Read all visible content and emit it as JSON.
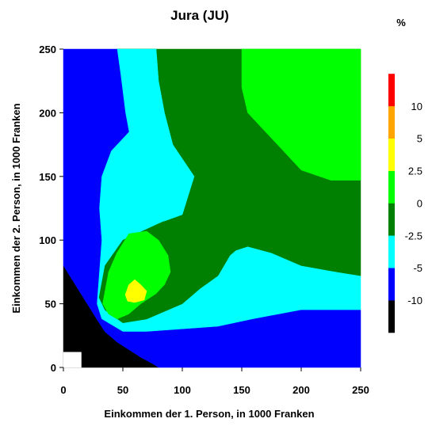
{
  "chart_data": {
    "type": "heatmap",
    "title": "Jura (JU)",
    "xlabel": "Einkommen der 1. Person, in 1000 Franken",
    "ylabel": "Einkommen der 2. Person, in 1000 Franken",
    "xlim": [
      0,
      250
    ],
    "ylim": [
      0,
      250
    ],
    "x_ticks": [
      0,
      50,
      100,
      150,
      200,
      250
    ],
    "y_ticks": [
      0,
      50,
      100,
      150,
      200,
      250
    ],
    "grid": false,
    "legend": "right",
    "colorbar": {
      "unit": "%",
      "boundaries": [
        -10,
        -5,
        -2.5,
        0,
        2.5,
        5,
        10
      ],
      "labels": [
        "-10",
        "-5",
        "-2.5",
        "0",
        "2.5",
        "5",
        "10"
      ],
      "colors": [
        "#000000",
        "#0000ff",
        "#00ffff",
        "#008000",
        "#00ff00",
        "#ffff00",
        "#ffa500",
        "#ff0000",
        "#ffffff"
      ]
    },
    "regions": [
      {
        "class": "< -10",
        "color": "#000000",
        "polygon": [
          [
            0,
            80
          ],
          [
            10,
            65
          ],
          [
            20,
            50
          ],
          [
            28,
            38
          ],
          [
            35,
            28
          ],
          [
            45,
            20
          ],
          [
            55,
            14
          ],
          [
            65,
            8
          ],
          [
            75,
            3
          ],
          [
            80,
            0
          ],
          [
            0,
            0
          ]
        ]
      },
      {
        "class": "-5 to -2.5",
        "color": "#00ffff",
        "polygon": [
          [
            45,
            250
          ],
          [
            48,
            230
          ],
          [
            52,
            200
          ],
          [
            55,
            185
          ],
          [
            40,
            170
          ],
          [
            32,
            150
          ],
          [
            30,
            125
          ],
          [
            32,
            100
          ],
          [
            30,
            75
          ],
          [
            28,
            50
          ],
          [
            32,
            38
          ],
          [
            50,
            28
          ],
          [
            70,
            28
          ],
          [
            100,
            30
          ],
          [
            130,
            32
          ],
          [
            160,
            38
          ],
          [
            200,
            45
          ],
          [
            250,
            45
          ],
          [
            250,
            72
          ],
          [
            230,
            75
          ],
          [
            200,
            80
          ],
          [
            175,
            90
          ],
          [
            155,
            95
          ],
          [
            145,
            92
          ],
          [
            140,
            88
          ],
          [
            135,
            80
          ],
          [
            130,
            72
          ],
          [
            115,
            62
          ],
          [
            100,
            50
          ],
          [
            75,
            45
          ],
          [
            80,
            60
          ],
          [
            85,
            70
          ],
          [
            88,
            82
          ],
          [
            90,
            90
          ],
          [
            95,
            105
          ],
          [
            100,
            120
          ],
          [
            105,
            135
          ],
          [
            110,
            150
          ],
          [
            92,
            175
          ],
          [
            85,
            200
          ],
          [
            80,
            225
          ],
          [
            78,
            250
          ]
        ]
      },
      {
        "class": "-2.5 to 0",
        "color": "#008000",
        "polygon": [
          [
            45,
            250
          ],
          [
            250,
            250
          ],
          [
            250,
            72
          ],
          [
            230,
            75
          ],
          [
            200,
            80
          ],
          [
            175,
            90
          ],
          [
            155,
            95
          ],
          [
            145,
            92
          ],
          [
            140,
            88
          ],
          [
            135,
            80
          ],
          [
            130,
            72
          ],
          [
            115,
            62
          ],
          [
            100,
            50
          ],
          [
            70,
            38
          ],
          [
            50,
            35
          ],
          [
            35,
            45
          ],
          [
            30,
            55
          ],
          [
            35,
            80
          ],
          [
            50,
            100
          ],
          [
            85,
            115
          ],
          [
            100,
            120
          ],
          [
            105,
            135
          ],
          [
            110,
            150
          ],
          [
            92,
            175
          ],
          [
            85,
            200
          ],
          [
            80,
            225
          ],
          [
            78,
            250
          ]
        ]
      },
      {
        "class": "-5 to -2.5",
        "color": "#00ffff",
        "polygon": [
          [
            45,
            250
          ],
          [
            48,
            230
          ],
          [
            52,
            200
          ],
          [
            55,
            185
          ],
          [
            40,
            170
          ],
          [
            32,
            150
          ],
          [
            30,
            125
          ],
          [
            32,
            100
          ],
          [
            45,
            110
          ],
          [
            85,
            115
          ],
          [
            100,
            120
          ],
          [
            105,
            135
          ],
          [
            110,
            150
          ],
          [
            92,
            175
          ],
          [
            85,
            200
          ],
          [
            80,
            225
          ],
          [
            78,
            250
          ]
        ]
      },
      {
        "class": "-10 to -5",
        "color": "#0000ff",
        "polygon": [
          [
            0,
            250
          ],
          [
            45,
            250
          ],
          [
            48,
            230
          ],
          [
            52,
            200
          ],
          [
            55,
            185
          ],
          [
            40,
            170
          ],
          [
            32,
            150
          ],
          [
            30,
            125
          ],
          [
            32,
            100
          ],
          [
            30,
            75
          ],
          [
            28,
            50
          ],
          [
            32,
            38
          ],
          [
            50,
            28
          ],
          [
            70,
            28
          ],
          [
            100,
            30
          ],
          [
            130,
            32
          ],
          [
            160,
            38
          ],
          [
            200,
            45
          ],
          [
            250,
            45
          ],
          [
            250,
            0
          ],
          [
            80,
            0
          ],
          [
            75,
            3
          ],
          [
            65,
            8
          ],
          [
            55,
            14
          ],
          [
            45,
            20
          ],
          [
            35,
            28
          ],
          [
            28,
            38
          ],
          [
            20,
            50
          ],
          [
            10,
            65
          ],
          [
            0,
            80
          ]
        ]
      },
      {
        "class": "0 to 2.5",
        "color": "#00ff00",
        "polygon": [
          [
            35,
            60
          ],
          [
            38,
            75
          ],
          [
            45,
            90
          ],
          [
            55,
            105
          ],
          [
            70,
            107
          ],
          [
            80,
            100
          ],
          [
            88,
            88
          ],
          [
            90,
            75
          ],
          [
            85,
            65
          ],
          [
            78,
            58
          ],
          [
            65,
            50
          ],
          [
            55,
            42
          ],
          [
            45,
            38
          ],
          [
            38,
            42
          ],
          [
            33,
            50
          ]
        ]
      },
      {
        "class": "0 to 2.5",
        "color": "#00ff00",
        "polygon": [
          [
            150,
            250
          ],
          [
            250,
            250
          ],
          [
            250,
            147
          ],
          [
            225,
            147
          ],
          [
            200,
            155
          ],
          [
            185,
            170
          ],
          [
            175,
            180
          ],
          [
            165,
            190
          ],
          [
            155,
            200
          ],
          [
            150,
            220
          ]
        ]
      },
      {
        "class": "2.5 to 5",
        "color": "#ffff00",
        "polygon": [
          [
            52,
            57
          ],
          [
            55,
            65
          ],
          [
            60,
            69
          ],
          [
            65,
            65
          ],
          [
            70,
            60
          ],
          [
            68,
            53
          ],
          [
            60,
            51
          ],
          [
            54,
            52
          ]
        ]
      },
      {
        "class": "no data",
        "color": "#ffffff",
        "polygon": [
          [
            0,
            0
          ],
          [
            15,
            0
          ],
          [
            15,
            12
          ],
          [
            0,
            12
          ]
        ]
      }
    ]
  }
}
